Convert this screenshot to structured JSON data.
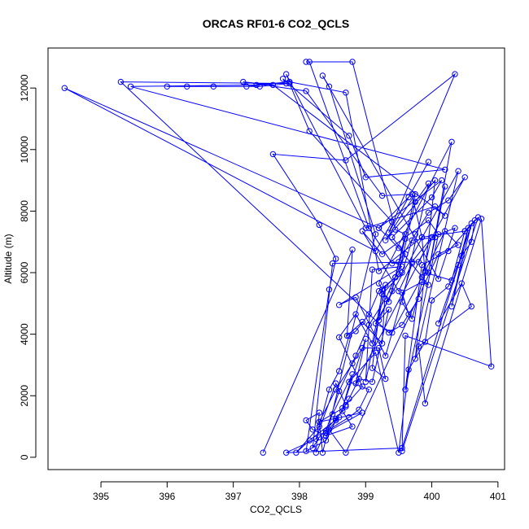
{
  "chart_data": {
    "type": "line",
    "title": "ORCAS RF01-6 CO2_QCLS",
    "xlabel": "CO2_QCLS",
    "ylabel": "Altitude (m)",
    "xlim": [
      394.2,
      401.1
    ],
    "ylim": [
      -400,
      13300
    ],
    "xticks": [
      395,
      396,
      397,
      398,
      399,
      400,
      401
    ],
    "yticks": [
      0,
      2000,
      4000,
      6000,
      8000,
      10000,
      12000
    ],
    "grid": false,
    "series": [
      {
        "color": "#0000ff",
        "points": [
          [
            397.45,
            150
          ],
          [
            398.8,
            6750
          ],
          [
            398.72,
            3950
          ],
          [
            398.95,
            4400
          ],
          [
            399.25,
            3700
          ],
          [
            399.3,
            5600
          ],
          [
            399.0,
            2450
          ],
          [
            399.1,
            6100
          ],
          [
            399.55,
            6200
          ],
          [
            398.6,
            4950
          ],
          [
            398.85,
            5200
          ],
          [
            399.3,
            3300
          ],
          [
            399.7,
            6300
          ],
          [
            399.5,
            5400
          ],
          [
            398.95,
            7350
          ],
          [
            399.25,
            6600
          ],
          [
            399.95,
            7700
          ],
          [
            400.1,
            7250
          ],
          [
            399.6,
            2200
          ],
          [
            399.85,
            6250
          ],
          [
            400.25,
            6700
          ],
          [
            400.7,
            7800
          ],
          [
            399.55,
            200
          ],
          [
            399.6,
            3950
          ],
          [
            400.9,
            2950
          ],
          [
            400.75,
            7750
          ],
          [
            399.9,
            1750
          ],
          [
            399.8,
            3600
          ],
          [
            400.6,
            4900
          ],
          [
            400.45,
            5650
          ],
          [
            400.1,
            4350
          ],
          [
            400.4,
            6250
          ],
          [
            400.55,
            7450
          ],
          [
            400.3,
            4900
          ],
          [
            400.6,
            7600
          ],
          [
            399.55,
            300
          ],
          [
            397.8,
            150
          ],
          [
            398.25,
            600
          ],
          [
            398.55,
            2400
          ],
          [
            398.7,
            1700
          ],
          [
            398.95,
            2300
          ],
          [
            398.6,
            3900
          ],
          [
            398.85,
            4650
          ],
          [
            399.1,
            3700
          ],
          [
            399.25,
            5300
          ],
          [
            399.55,
            6000
          ],
          [
            399.7,
            7050
          ],
          [
            400.05,
            7150
          ],
          [
            400.2,
            8800
          ],
          [
            399.95,
            6000
          ],
          [
            400.3,
            10250
          ],
          [
            399.2,
            5650
          ],
          [
            399.35,
            5050
          ],
          [
            399.6,
            7100
          ],
          [
            399.75,
            8550
          ],
          [
            399.3,
            7050
          ],
          [
            400.05,
            9000
          ],
          [
            399.75,
            3200
          ],
          [
            400.4,
            9300
          ],
          [
            399.15,
            4350
          ],
          [
            399.4,
            4050
          ],
          [
            399.85,
            5850
          ],
          [
            400.0,
            7150
          ],
          [
            398.85,
            2400
          ],
          [
            399.0,
            3850
          ],
          [
            398.65,
            1600
          ],
          [
            398.8,
            2700
          ],
          [
            398.5,
            1400
          ],
          [
            398.7,
            1650
          ],
          [
            398.3,
            1150
          ],
          [
            398.95,
            1450
          ],
          [
            398.4,
            800
          ],
          [
            398.6,
            1300
          ],
          [
            398.15,
            550
          ],
          [
            397.95,
            150
          ],
          [
            398.3,
            1000
          ],
          [
            398.45,
            2200
          ],
          [
            398.6,
            2800
          ],
          [
            398.75,
            3950
          ],
          [
            398.85,
            4100
          ],
          [
            399.05,
            4650
          ],
          [
            399.2,
            5400
          ],
          [
            399.45,
            5850
          ],
          [
            399.6,
            6600
          ],
          [
            399.4,
            7150
          ],
          [
            400.0,
            8450
          ],
          [
            400.15,
            9000
          ],
          [
            399.2,
            7450
          ],
          [
            399.65,
            8450
          ],
          [
            399.95,
            9600
          ],
          [
            399.35,
            7300
          ],
          [
            400.35,
            12450
          ],
          [
            398.7,
            9650
          ],
          [
            397.6,
            9850
          ],
          [
            398.3,
            7550
          ],
          [
            398.55,
            6450
          ],
          [
            398.45,
            5450
          ],
          [
            398.1,
            200
          ],
          [
            398.4,
            550
          ],
          [
            398.55,
            1200
          ],
          [
            398.75,
            1900
          ],
          [
            398.9,
            2550
          ],
          [
            399.1,
            2450
          ],
          [
            399.35,
            4800
          ],
          [
            399.2,
            4450
          ],
          [
            399.4,
            5400
          ],
          [
            399.5,
            6350
          ],
          [
            399.75,
            7250
          ],
          [
            399.95,
            7950
          ],
          [
            400.25,
            8350
          ],
          [
            400.5,
            9100
          ],
          [
            399.8,
            6350
          ],
          [
            398.5,
            6300
          ],
          [
            398.2,
            300
          ],
          [
            398.3,
            650
          ],
          [
            398.55,
            1250
          ],
          [
            398.65,
            1500
          ],
          [
            398.8,
            1000
          ],
          [
            398.4,
            700
          ],
          [
            398.2,
            900
          ],
          [
            398.1,
            1200
          ],
          [
            398.3,
            1450
          ],
          [
            398.25,
            150
          ],
          [
            398.4,
            850
          ],
          [
            398.6,
            2150
          ],
          [
            398.85,
            3300
          ],
          [
            399.05,
            4300
          ],
          [
            399.3,
            5150
          ],
          [
            399.45,
            5850
          ],
          [
            399.6,
            7250
          ],
          [
            399.45,
            7400
          ],
          [
            398.8,
            12850
          ],
          [
            398.1,
            12850
          ],
          [
            398.15,
            12850
          ],
          [
            399.05,
            7450
          ],
          [
            399.4,
            6300
          ],
          [
            399.7,
            6350
          ],
          [
            400.0,
            7150
          ],
          [
            400.35,
            7450
          ],
          [
            400.1,
            5800
          ],
          [
            398.35,
            12400
          ],
          [
            398.45,
            12050
          ],
          [
            399.15,
            7250
          ],
          [
            398.35,
            150
          ],
          [
            398.3,
            1150
          ],
          [
            398.55,
            2200
          ],
          [
            398.8,
            3050
          ],
          [
            398.95,
            3550
          ],
          [
            399.2,
            3550
          ],
          [
            399.3,
            2550
          ],
          [
            399.1,
            2900
          ],
          [
            399.25,
            5450
          ],
          [
            399.5,
            5950
          ],
          [
            399.75,
            8300
          ],
          [
            399.95,
            8900
          ],
          [
            399.55,
            5050
          ],
          [
            399.7,
            4500
          ],
          [
            399.9,
            6050
          ],
          [
            400.2,
            7350
          ],
          [
            400.4,
            6900
          ],
          [
            400.1,
            6600
          ],
          [
            398.7,
            150
          ],
          [
            398.45,
            900
          ],
          [
            398.75,
            1300
          ],
          [
            398.9,
            1550
          ],
          [
            399.05,
            2200
          ],
          [
            398.75,
            2450
          ],
          [
            399.15,
            3400
          ],
          [
            399.5,
            150
          ],
          [
            399.65,
            2850
          ],
          [
            399.9,
            3750
          ],
          [
            400.0,
            5100
          ],
          [
            400.25,
            5550
          ],
          [
            400.45,
            6550
          ],
          [
            400.6,
            7000
          ],
          [
            400.65,
            7700
          ],
          [
            400.5,
            7350
          ],
          [
            400.3,
            5750
          ],
          [
            399.9,
            6000
          ],
          [
            399.85,
            7150
          ],
          [
            399.2,
            6050
          ],
          [
            398.7,
            11850
          ],
          [
            397.85,
            12200
          ],
          [
            397.2,
            12050
          ],
          [
            396.3,
            12050
          ],
          [
            396.0,
            12050
          ],
          [
            396.7,
            12050
          ],
          [
            397.4,
            12050
          ],
          [
            397.85,
            12150
          ],
          [
            398.15,
            10600
          ],
          [
            399.4,
            7650
          ],
          [
            399.15,
            6700
          ],
          [
            394.45,
            12000
          ],
          [
            399.2,
            7450
          ],
          [
            399.5,
            6800
          ],
          [
            399.95,
            5600
          ],
          [
            399.85,
            5700
          ],
          [
            399.55,
            5350
          ],
          [
            399.65,
            4650
          ],
          [
            399.8,
            5150
          ],
          [
            399.55,
            4300
          ],
          [
            399.35,
            4050
          ],
          [
            395.3,
            12200
          ],
          [
            397.8,
            12150
          ],
          [
            397.75,
            12300
          ],
          [
            398.75,
            10450
          ],
          [
            399.0,
            9100
          ],
          [
            400.2,
            9350
          ],
          [
            395.45,
            12050
          ],
          [
            397.35,
            12100
          ],
          [
            397.85,
            12200
          ],
          [
            397.8,
            12450
          ],
          [
            399.0,
            7450
          ],
          [
            400.05,
            8150
          ],
          [
            400.2,
            7850
          ],
          [
            397.6,
            12100
          ],
          [
            397.15,
            12200
          ],
          [
            398.1,
            11900
          ],
          [
            399.25,
            8500
          ],
          [
            399.7,
            8550
          ],
          [
            399.85,
            7150
          ],
          [
            400.5,
            7350
          ]
        ]
      }
    ]
  }
}
